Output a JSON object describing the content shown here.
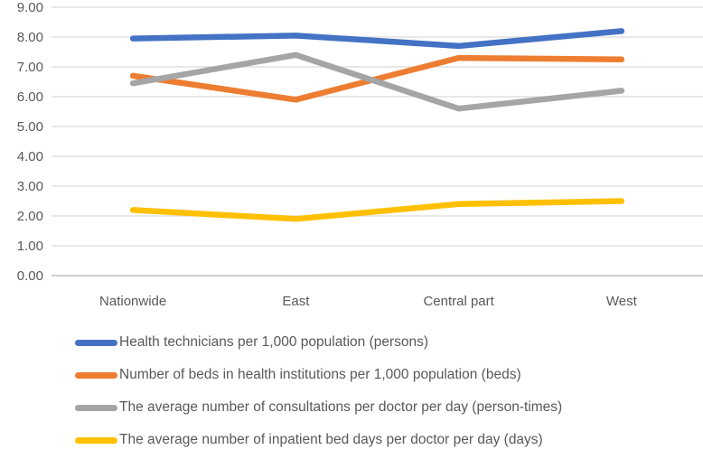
{
  "chart_data": {
    "type": "line",
    "categories": [
      "Nationwide",
      "East",
      "Central part",
      "West"
    ],
    "series": [
      {
        "name": "Health technicians per 1,000 population (persons)",
        "color": "#4472C4",
        "values": [
          7.95,
          8.05,
          7.7,
          8.2
        ]
      },
      {
        "name": "Number of beds in health institutions per 1,000 population (beds)",
        "color": "#ED7D31",
        "values": [
          6.7,
          5.9,
          7.3,
          7.25
        ]
      },
      {
        "name": "The average number of consultations per doctor per day (person-times)",
        "color": "#A5A5A5",
        "values": [
          6.45,
          7.4,
          5.6,
          6.2
        ]
      },
      {
        "name": "The average number of inpatient bed days per doctor per day (days)",
        "color": "#FFC000",
        "values": [
          2.2,
          1.9,
          2.4,
          2.5
        ]
      }
    ],
    "title": "",
    "xlabel": "",
    "ylabel": "",
    "ylim": [
      0,
      9
    ],
    "y_tick_labels": [
      "0.00",
      "1.00",
      "2.00",
      "3.00",
      "4.00",
      "5.00",
      "6.00",
      "7.00",
      "8.00",
      "9.00"
    ],
    "grid": true,
    "legend_position": "bottom",
    "gridline_color": "#D9D9D9",
    "axis_line_color": "#BFBFBF",
    "tick_label_color": "#595959",
    "line_width": 6.5
  }
}
